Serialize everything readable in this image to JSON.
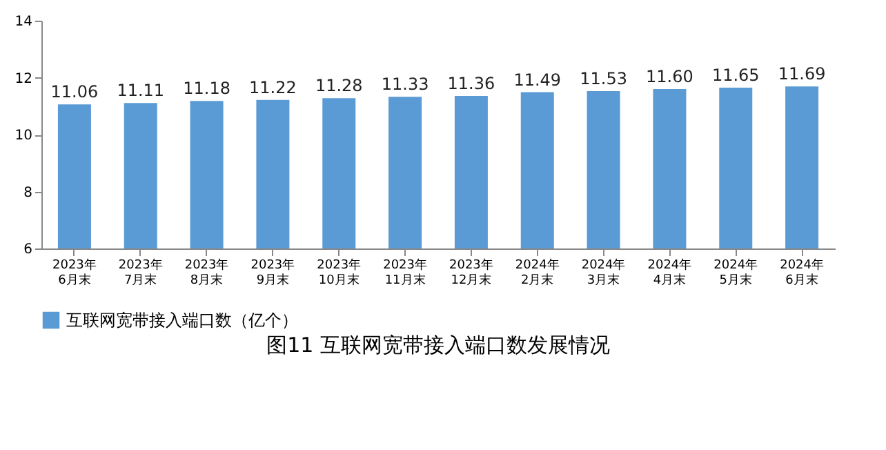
{
  "chart_data": {
    "type": "bar",
    "title": "图11 互联网宽带接入端口数发展情况",
    "categories": [
      "2023年6月末",
      "2023年7月末",
      "2023年8月末",
      "2023年9月末",
      "2023年10月末",
      "2023年11月末",
      "2023年12月末",
      "2024年2月末",
      "2024年3月末",
      "2024年4月末",
      "2024年5月末",
      "2024年6月末"
    ],
    "series": [
      {
        "name": "互联网宽带接入端口数（亿个）",
        "color": "#5b9bd5",
        "values": [
          11.06,
          11.11,
          11.18,
          11.22,
          11.28,
          11.33,
          11.36,
          11.49,
          11.53,
          11.6,
          11.65,
          11.69
        ]
      }
    ],
    "ylim": [
      6,
      14
    ],
    "yticks": [
      6,
      8,
      10,
      12,
      14
    ],
    "value_labels": [
      "11.06",
      "11.11",
      "11.18",
      "11.22",
      "11.28",
      "11.33",
      "11.36",
      "11.49",
      "11.53",
      "11.60",
      "11.65",
      "11.69"
    ],
    "grid": false,
    "legend": "bottom"
  }
}
